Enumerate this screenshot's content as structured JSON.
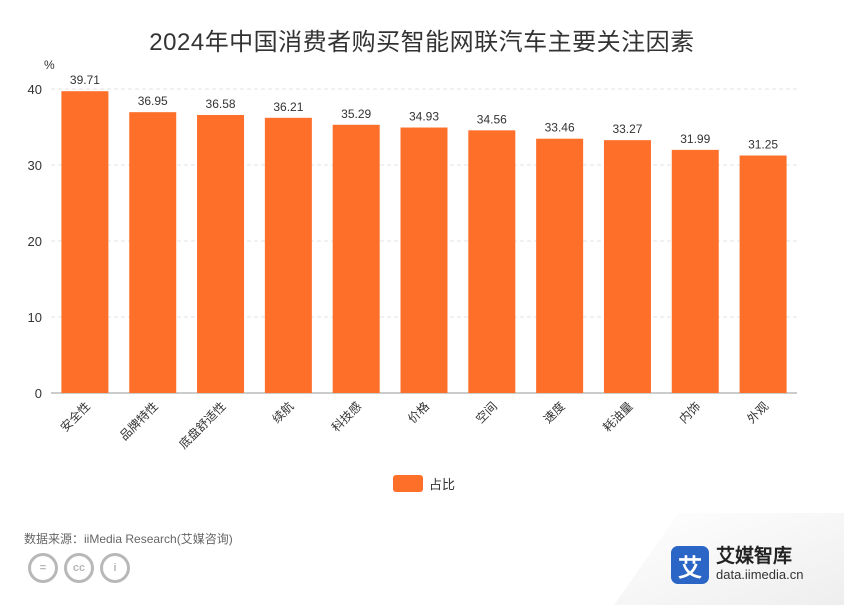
{
  "chart_data": {
    "type": "bar",
    "title": "2024年中国消费者购买智能网联汽车主要关注因素",
    "ylabel": "%",
    "ylim": [
      0,
      40
    ],
    "yticks": [
      0,
      10,
      20,
      30,
      40
    ],
    "grid": true,
    "categories": [
      "安全性",
      "品牌特性",
      "底盘舒适性",
      "续航",
      "科技感",
      "价格",
      "空间",
      "速度",
      "耗油量",
      "内饰",
      "外观"
    ],
    "series": [
      {
        "name": "占比",
        "color": "#fe6f2a",
        "values": [
          39.71,
          36.95,
          36.58,
          36.21,
          35.29,
          34.93,
          34.56,
          33.46,
          33.27,
          31.99,
          31.25
        ],
        "value_labels": [
          "39.71",
          "36.95",
          "36.58",
          "36.21",
          "35.29",
          "34.93",
          "34.56",
          "33.46",
          "33.27",
          "31.99",
          "31.25"
        ]
      }
    ],
    "legend_position": "bottom-center"
  },
  "footer": {
    "source": "数据来源：iiMedia Research(艾媒咨询)",
    "license_icons": [
      "equals-icon",
      "cc-icon",
      "person-icon"
    ],
    "license_glyphs": [
      "=",
      "cc",
      "i"
    ]
  },
  "brand": {
    "logo_char": "艾",
    "name": "艾媒智库",
    "url": "data.iimedia.cn",
    "color": "#2b65c6"
  }
}
